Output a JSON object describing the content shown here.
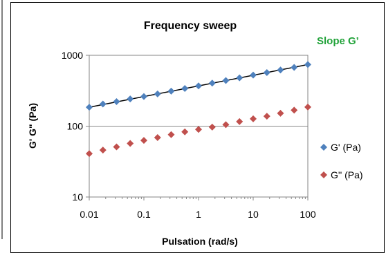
{
  "chart_data": {
    "type": "scatter",
    "title": "Frequency sweep",
    "xlabel": "Pulsation (rad/s)",
    "ylabel": "G' G\" (Pa)",
    "x_scale": "log",
    "y_scale": "log",
    "xlim": [
      0.01,
      100
    ],
    "ylim": [
      10,
      1000
    ],
    "x_ticks": [
      "0.01",
      "0.1",
      "1",
      "10",
      "100"
    ],
    "y_ticks": [
      "10",
      "100",
      "1000"
    ],
    "grid": "horizontal major",
    "legend_position": "right",
    "annotation": {
      "text": "Slope G’",
      "color": "#22a33a"
    },
    "series": [
      {
        "name": "G' (Pa)",
        "color": "#4f81bd",
        "marker": "diamond",
        "x": [
          0.01,
          0.0178,
          0.0316,
          0.0562,
          0.1,
          0.178,
          0.316,
          0.562,
          1,
          1.78,
          3.16,
          5.62,
          10,
          17.8,
          31.6,
          56.2,
          100
        ],
        "y": [
          185,
          205,
          222,
          242,
          262,
          285,
          312,
          340,
          370,
          405,
          440,
          480,
          525,
          570,
          620,
          675,
          740
        ]
      },
      {
        "name": "G'' (Pa)",
        "color": "#c0504d",
        "marker": "diamond",
        "x": [
          0.01,
          0.0178,
          0.0316,
          0.0562,
          0.1,
          0.178,
          0.316,
          0.562,
          1,
          1.78,
          3.16,
          5.62,
          10,
          17.8,
          31.6,
          56.2,
          100
        ],
        "y": [
          41,
          46,
          51,
          57,
          63,
          69,
          76,
          83,
          90,
          97,
          105,
          116,
          127,
          138,
          152,
          168,
          186
        ]
      }
    ],
    "trendline": {
      "series": "G' (Pa)",
      "type": "power",
      "color": "#000000",
      "x": [
        0.01,
        100
      ],
      "y": [
        185,
        740
      ]
    }
  }
}
